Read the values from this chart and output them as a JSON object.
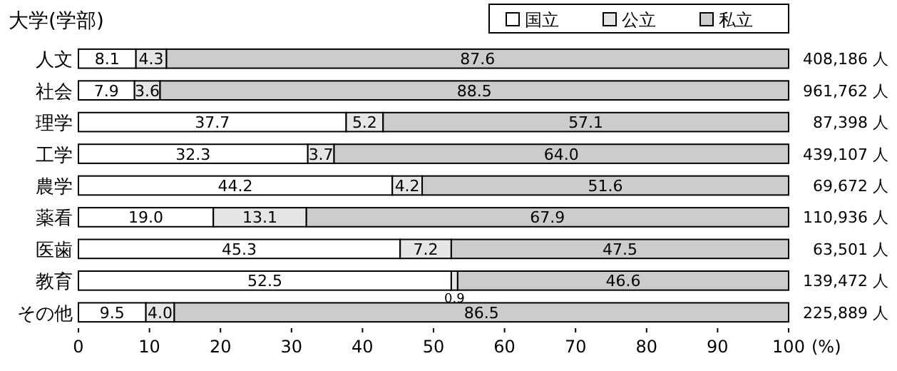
{
  "chart_data": {
    "type": "bar",
    "orientation": "horizontal",
    "stacked": true,
    "title": "大学(学部)",
    "xlabel": "(%)",
    "categories": [
      "人文",
      "社会",
      "理学",
      "工学",
      "農学",
      "薬看",
      "医歯",
      "教育",
      "その他"
    ],
    "series": [
      {
        "name": "国立",
        "color": "#ffffff",
        "values": [
          8.1,
          7.9,
          37.7,
          32.3,
          44.2,
          19.0,
          45.3,
          52.5,
          9.5
        ],
        "value_labels": [
          "8.1",
          "7.9",
          "37.7",
          "32.3",
          "44.2",
          "19.0",
          "45.3",
          "52.5",
          "9.5"
        ]
      },
      {
        "name": "公立",
        "color": "#e6e6e6",
        "values": [
          4.3,
          3.6,
          5.2,
          3.7,
          4.2,
          13.1,
          7.2,
          0.9,
          4.0
        ],
        "value_labels": [
          "4.3",
          "3.6",
          "5.2",
          "3.7",
          "4.2",
          "13.1",
          "7.2",
          "0.9",
          "4.0"
        ]
      },
      {
        "name": "私立",
        "color": "#cccccc",
        "values": [
          87.6,
          88.5,
          57.1,
          64.0,
          51.6,
          67.9,
          47.5,
          46.6,
          86.5
        ],
        "value_labels": [
          "87.6",
          "88.5",
          "57.1",
          "64.0",
          "51.6",
          "67.9",
          "47.5",
          "46.6",
          "86.5"
        ]
      }
    ],
    "annotations": [
      "408,186 人",
      "961,762 人",
      "87,398 人",
      "439,107 人",
      "69,672 人",
      "110,936 人",
      "63,501 人",
      "139,472 人",
      "225,889 人"
    ],
    "xlim": [
      0,
      100
    ],
    "xticks": [
      0,
      10,
      20,
      30,
      40,
      50,
      60,
      70,
      80,
      90,
      100
    ],
    "legend": "top right",
    "grid": false
  }
}
